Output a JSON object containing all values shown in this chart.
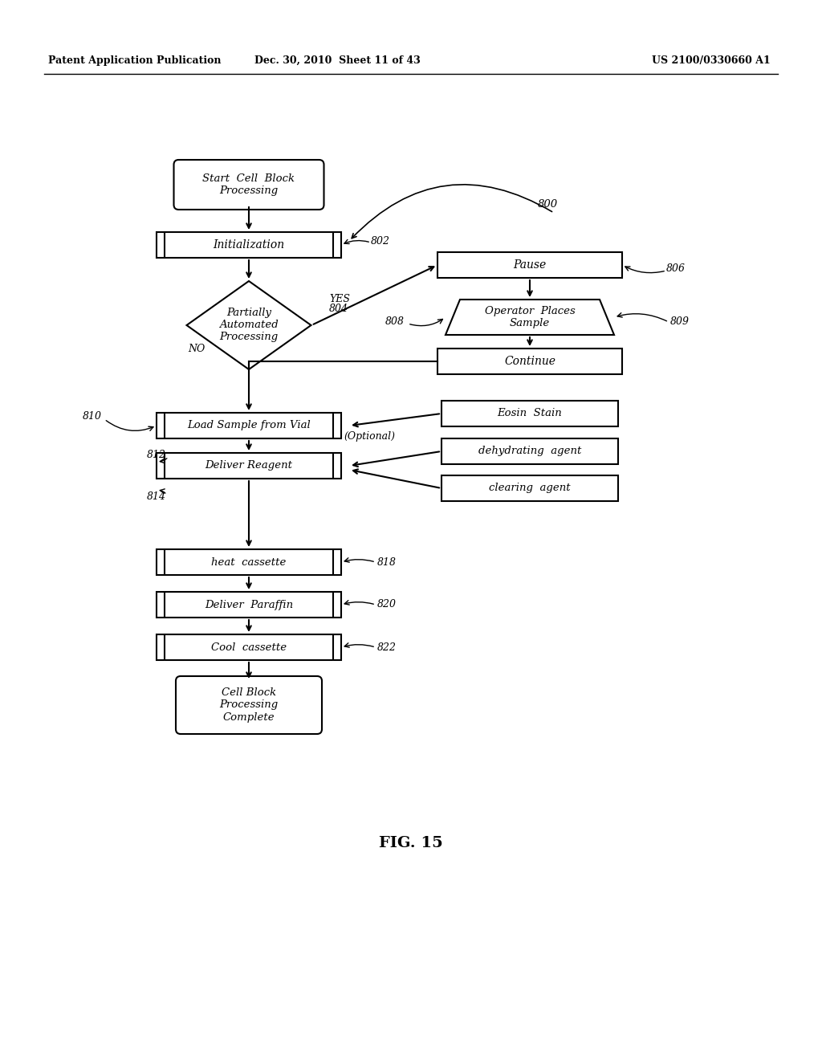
{
  "header_left": "Patent Application Publication",
  "header_middle": "Dec. 30, 2010  Sheet 11 of 43",
  "header_right": "US 2100/0330660 A1",
  "figure_label": "FIG. 15",
  "background_color": "#ffffff"
}
